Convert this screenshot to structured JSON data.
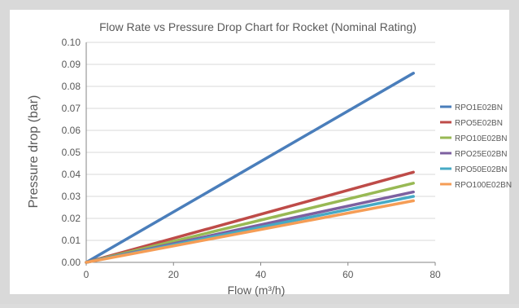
{
  "chart_data": {
    "type": "line",
    "title": "Flow Rate vs Pressure Drop Chart for Rocket (Nominal Rating)",
    "xlabel": "Flow (m³/h)",
    "ylabel": "Pressure drop (bar)",
    "xlim": [
      0,
      80
    ],
    "ylim": [
      0,
      0.1
    ],
    "xticks": [
      "0",
      "20",
      "40",
      "60",
      "80"
    ],
    "yticks": [
      "0.00",
      "0.01",
      "0.02",
      "0.03",
      "0.04",
      "0.05",
      "0.06",
      "0.07",
      "0.08",
      "0.09",
      "0.10"
    ],
    "grid": true,
    "legend_position": "right",
    "series": [
      {
        "name": "RPO1E02BN",
        "color": "#4a7ebb",
        "points": [
          [
            0,
            0
          ],
          [
            75,
            0.086
          ]
        ]
      },
      {
        "name": "RPO5E02BN",
        "color": "#be4b48",
        "points": [
          [
            0,
            0
          ],
          [
            75,
            0.041
          ]
        ]
      },
      {
        "name": "RPO10E02BN",
        "color": "#98b954",
        "points": [
          [
            0,
            0
          ],
          [
            75,
            0.036
          ]
        ]
      },
      {
        "name": "RPO25E02BN",
        "color": "#7d60a0",
        "points": [
          [
            0,
            0
          ],
          [
            75,
            0.032
          ]
        ]
      },
      {
        "name": "RPO50E02BN",
        "color": "#46aac5",
        "points": [
          [
            0,
            0
          ],
          [
            75,
            0.03
          ]
        ]
      },
      {
        "name": "RPO100E02BN",
        "color": "#f59d56",
        "points": [
          [
            0,
            0
          ],
          [
            75,
            0.028
          ]
        ]
      }
    ]
  }
}
